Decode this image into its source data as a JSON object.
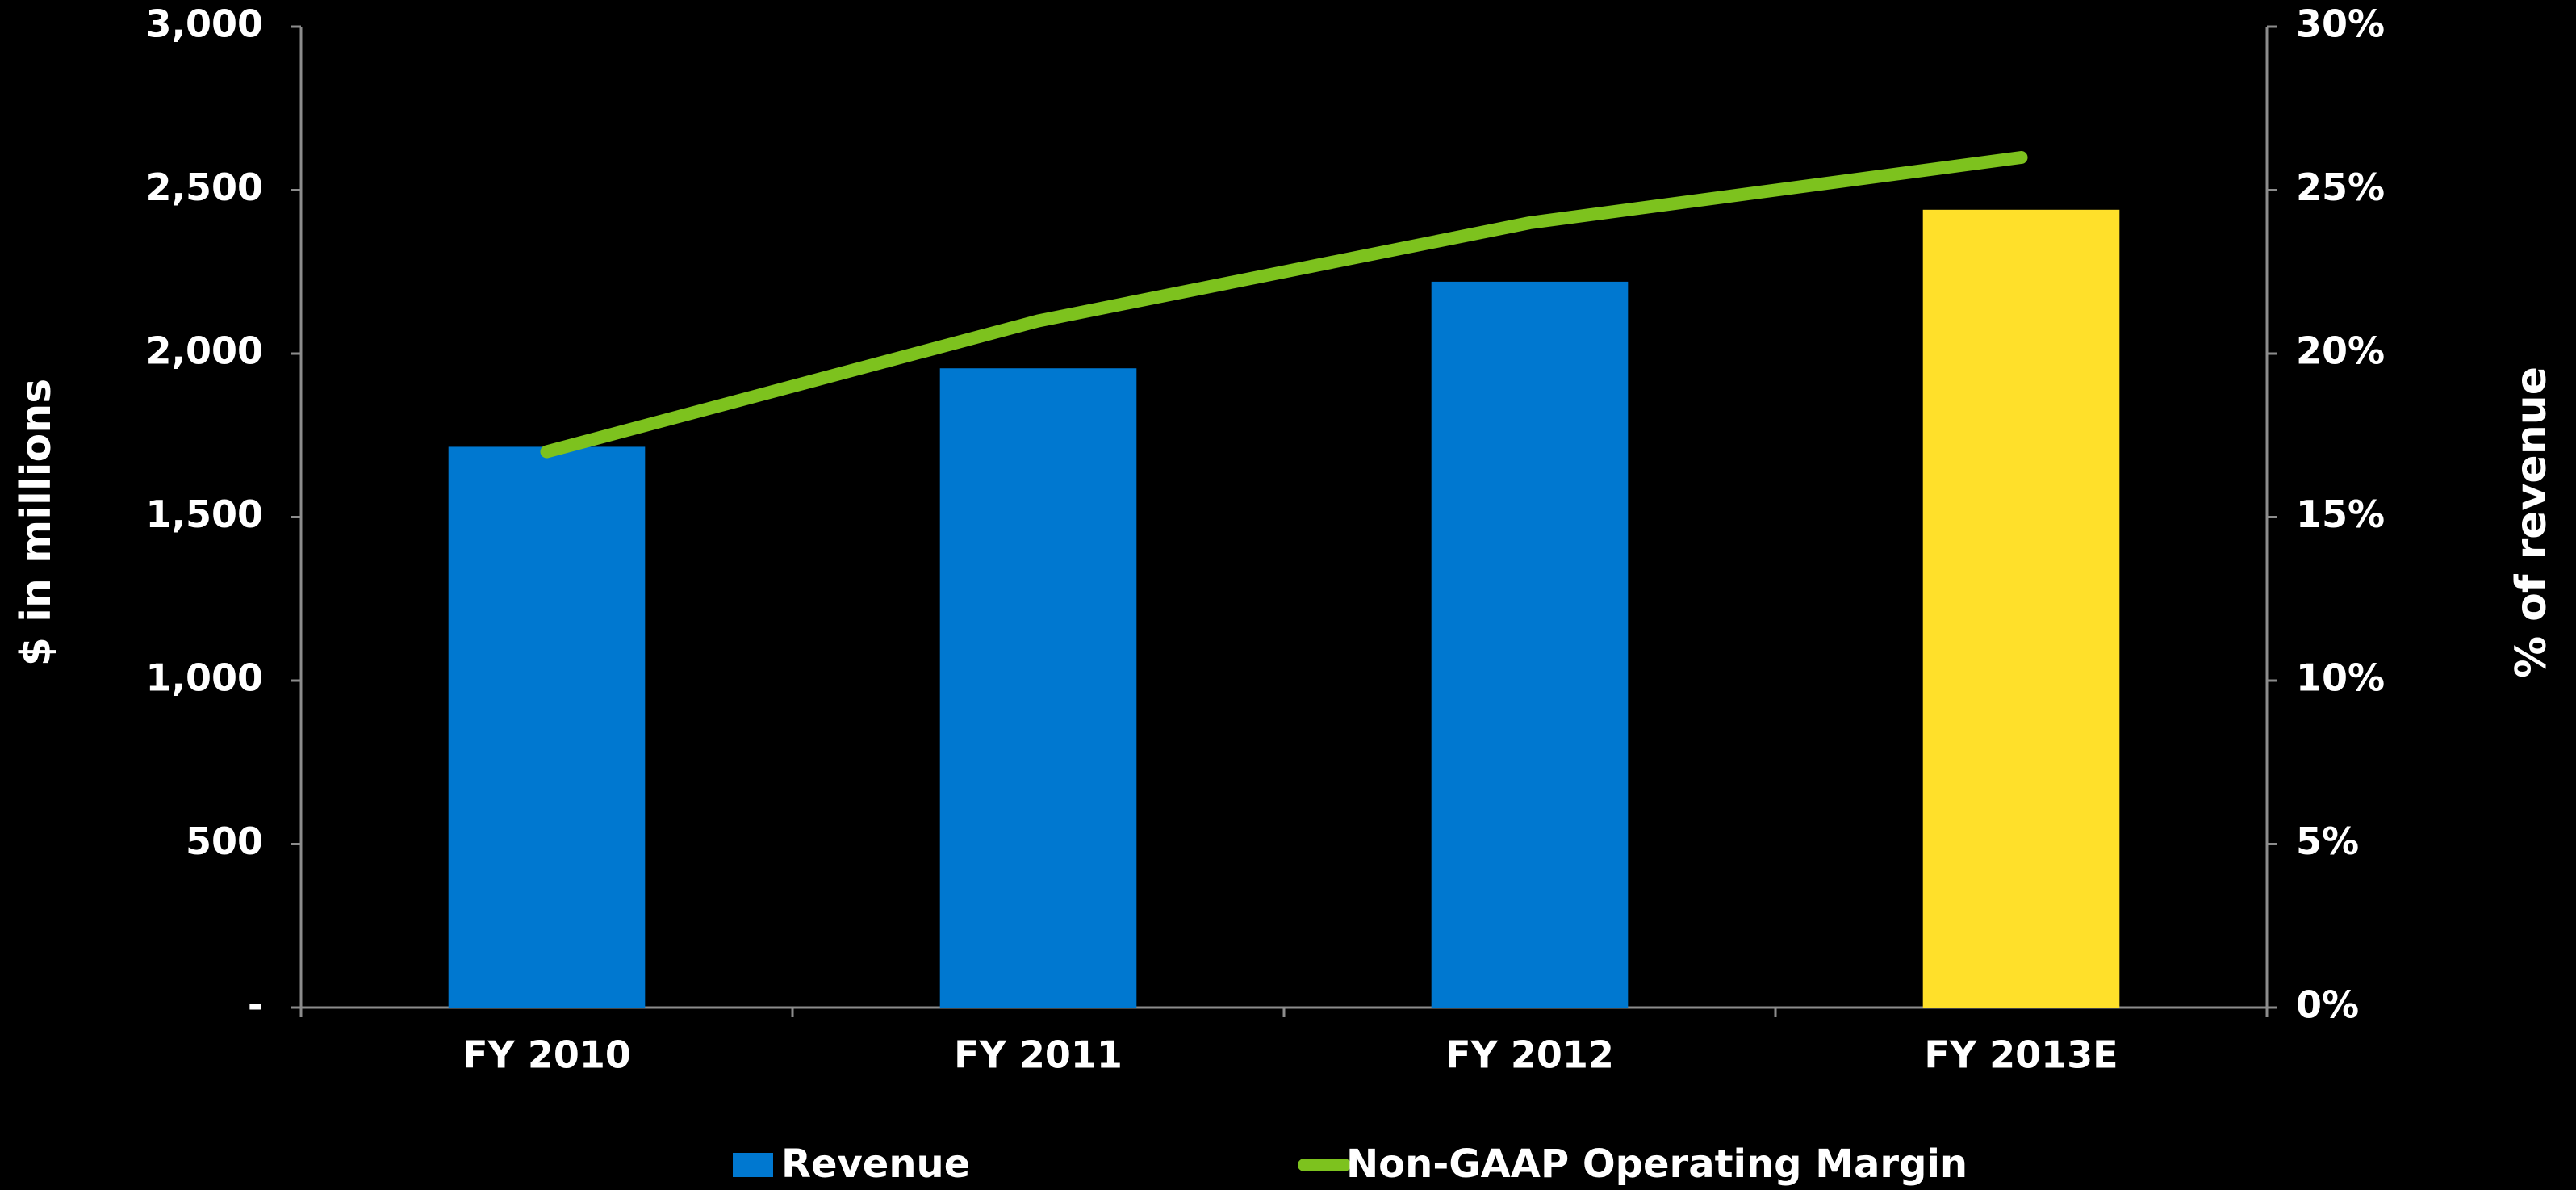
{
  "chart_data": {
    "type": "bar",
    "categories": [
      "FY 2010",
      "FY 2011",
      "FY 2012",
      "FY 2013E"
    ],
    "series": [
      {
        "name": "Revenue",
        "type": "bar",
        "color": "#0078d0",
        "colors": [
          "#0078d0",
          "#0078d0",
          "#0078d0",
          "#ffe02a"
        ],
        "values": [
          1715,
          1955,
          2220,
          2440
        ]
      },
      {
        "name": "Non-GAAP Operating Margin",
        "type": "line",
        "axis": "y2",
        "color": "#7dc21e",
        "values": [
          17,
          21,
          24,
          26
        ]
      }
    ],
    "ylabel": "$ in millions",
    "y2label": "% of revenue",
    "ylim": [
      0,
      3000
    ],
    "yticks": [
      {
        "value": 0,
        "label": "-"
      },
      500,
      {
        "value": 1000,
        "label": "1,000"
      },
      {
        "value": 1500,
        "label": "1,500"
      },
      {
        "value": 2000,
        "label": "2,000"
      },
      {
        "value": 2500,
        "label": "2,500"
      },
      {
        "value": 3000,
        "label": "3,000"
      }
    ],
    "y2lim": [
      0,
      30
    ],
    "y2ticks": [
      {
        "value": 0,
        "label": "0%"
      },
      {
        "value": 5,
        "label": "5%"
      },
      {
        "value": 10,
        "label": "10%"
      },
      {
        "value": 15,
        "label": "15%"
      },
      {
        "value": 20,
        "label": "20%"
      },
      {
        "value": 25,
        "label": "25%"
      },
      {
        "value": 30,
        "label": "30%"
      }
    ],
    "legend": "bottom"
  }
}
